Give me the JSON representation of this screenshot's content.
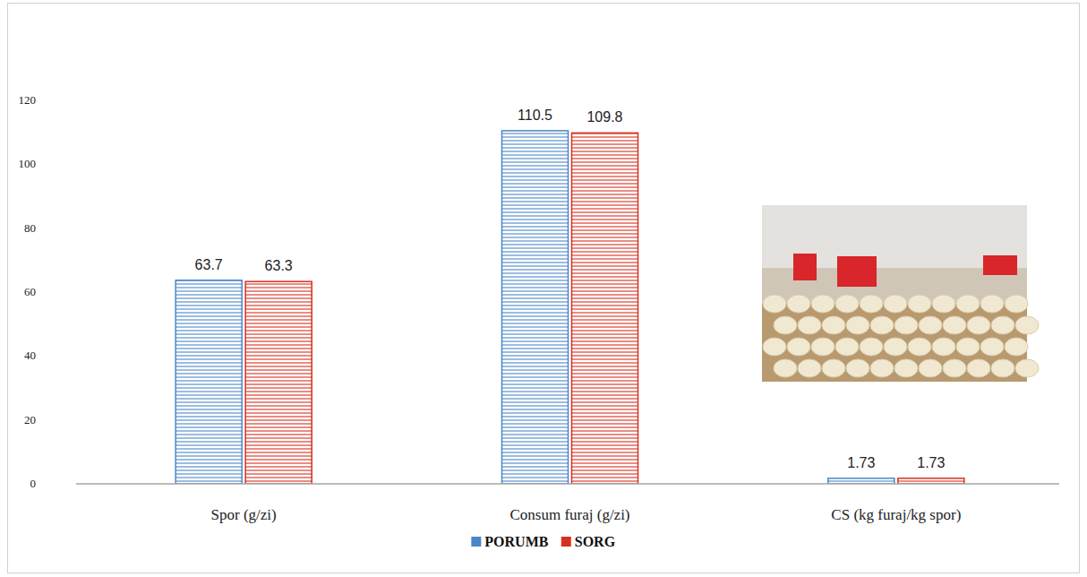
{
  "chart_data": {
    "type": "bar",
    "categories": [
      "Spor (g/zi)",
      "Consum furaj (g/zi)",
      "CS (kg furaj/kg spor)"
    ],
    "series": [
      {
        "name": "PORUMB",
        "color": "#4a86c8",
        "values": [
          63.7,
          110.5,
          1.73
        ]
      },
      {
        "name": "SORG",
        "color": "#d7301f",
        "values": [
          63.3,
          109.8,
          1.73
        ]
      }
    ],
    "ylim": [
      0,
      120
    ],
    "yticks": [
      0,
      20,
      40,
      60,
      80,
      100,
      120
    ],
    "grid": false,
    "legend": "bottom",
    "data_labels": true
  }
}
